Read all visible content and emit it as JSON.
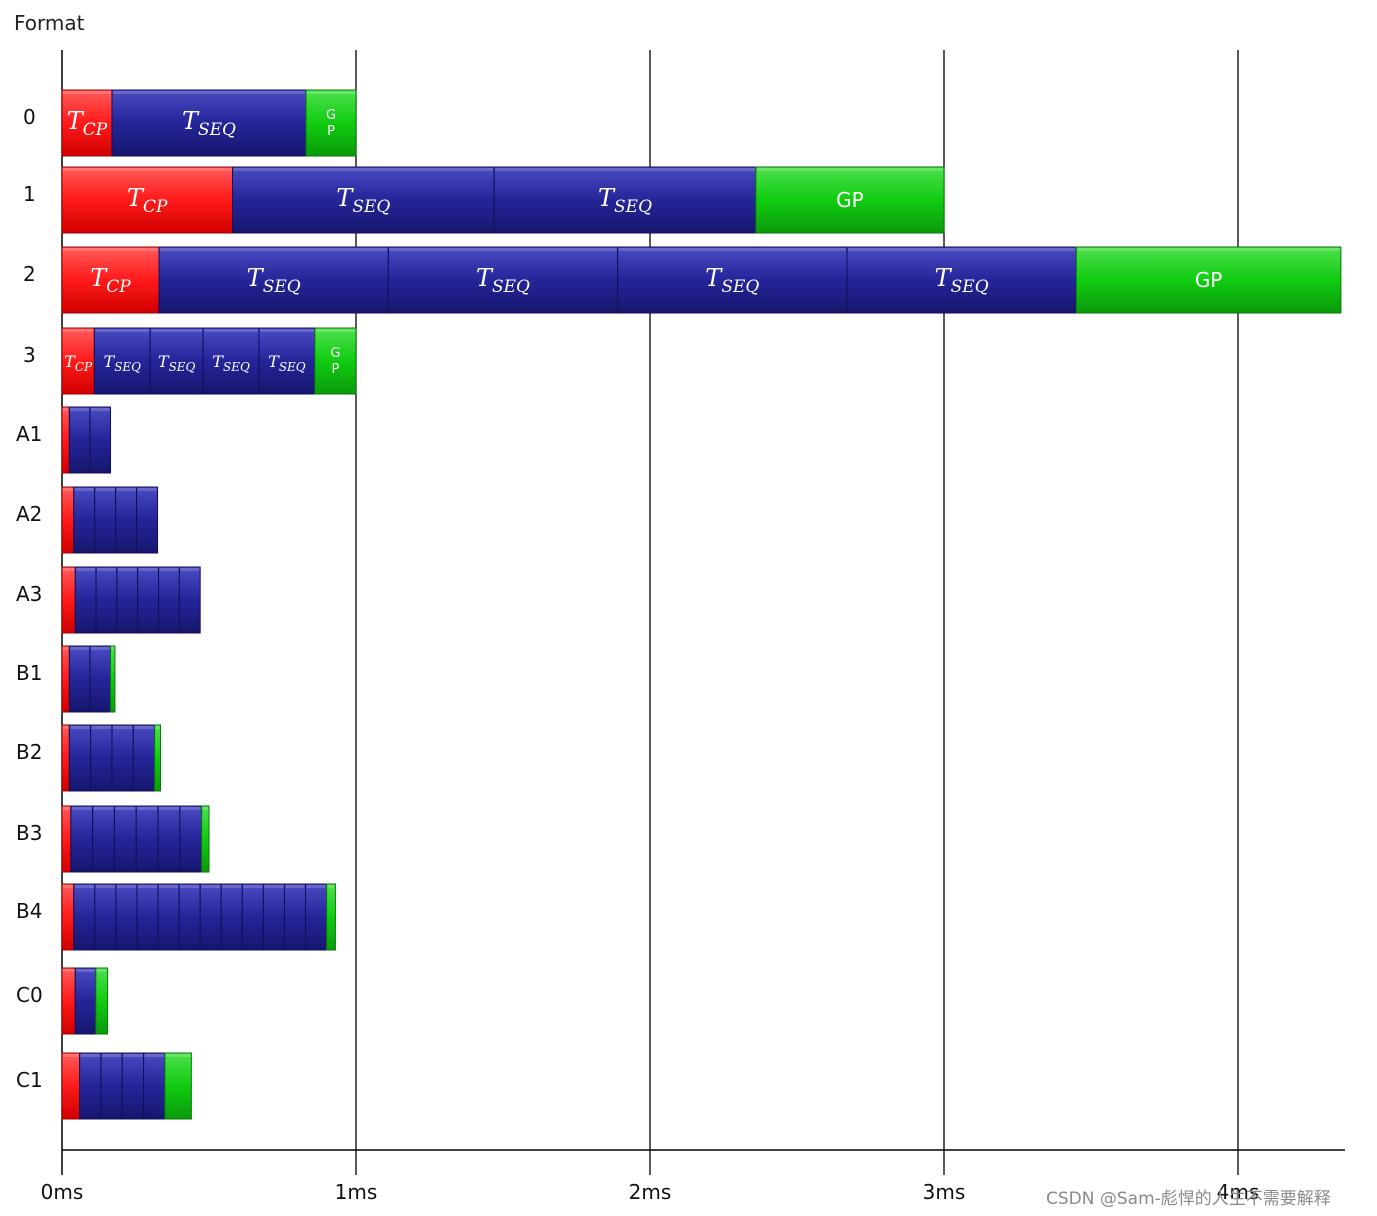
{
  "header": {
    "title": "Format"
  },
  "watermark": "CSDN @Sam-彪悍的人生不需要解释",
  "chart_data": {
    "type": "bar",
    "orientation": "horizontal-stacked-timeline",
    "title": "",
    "xlabel": "",
    "ylabel": "Format",
    "x_unit": "ms",
    "x_ticks": [
      {
        "value": 0,
        "label": "0ms"
      },
      {
        "value": 1,
        "label": "1ms"
      },
      {
        "value": 2,
        "label": "2ms"
      },
      {
        "value": 3,
        "label": "3ms"
      },
      {
        "value": 4,
        "label": "4ms"
      }
    ],
    "xlim": [
      0,
      4.35
    ],
    "grid": "vertical-at-ticks",
    "segment_types": {
      "cp": {
        "label": "T",
        "sub": "CP",
        "color": "#ff1a1a"
      },
      "seq": {
        "label": "T",
        "sub": "SEQ",
        "color": "#25259a"
      },
      "gp": {
        "label": "GP",
        "color": "#11cc11"
      }
    },
    "rows": [
      {
        "name": "0",
        "segments": [
          {
            "type": "cp",
            "start": 0.0,
            "end": 0.17,
            "text": "T",
            "sub": "CP"
          },
          {
            "type": "seq",
            "start": 0.17,
            "end": 0.83,
            "text": "T",
            "sub": "SEQ"
          },
          {
            "type": "gp",
            "start": 0.83,
            "end": 1.0,
            "text": "G\nP"
          }
        ]
      },
      {
        "name": "1",
        "segments": [
          {
            "type": "cp",
            "start": 0.0,
            "end": 0.58,
            "text": "T",
            "sub": "CP"
          },
          {
            "type": "seq",
            "start": 0.58,
            "end": 1.47,
            "text": "T",
            "sub": "SEQ"
          },
          {
            "type": "seq",
            "start": 1.47,
            "end": 2.36,
            "text": "T",
            "sub": "SEQ"
          },
          {
            "type": "gp",
            "start": 2.36,
            "end": 3.0,
            "text": "GP"
          }
        ]
      },
      {
        "name": "2",
        "segments": [
          {
            "type": "cp",
            "start": 0.0,
            "end": 0.33,
            "text": "T",
            "sub": "CP"
          },
          {
            "type": "seq",
            "start": 0.33,
            "end": 1.11,
            "text": "T",
            "sub": "SEQ"
          },
          {
            "type": "seq",
            "start": 1.11,
            "end": 1.89,
            "text": "T",
            "sub": "SEQ"
          },
          {
            "type": "seq",
            "start": 1.89,
            "end": 2.67,
            "text": "T",
            "sub": "SEQ"
          },
          {
            "type": "seq",
            "start": 2.67,
            "end": 3.45,
            "text": "T",
            "sub": "SEQ"
          },
          {
            "type": "gp",
            "start": 3.45,
            "end": 4.35,
            "text": "GP"
          }
        ]
      },
      {
        "name": "3",
        "segments": [
          {
            "type": "cp",
            "start": 0.0,
            "end": 0.11,
            "text": "T",
            "sub": "CP"
          },
          {
            "type": "seq",
            "start": 0.11,
            "end": 0.3,
            "text": "T",
            "sub": "SEQ"
          },
          {
            "type": "seq",
            "start": 0.3,
            "end": 0.48,
            "text": "T",
            "sub": "SEQ"
          },
          {
            "type": "seq",
            "start": 0.48,
            "end": 0.67,
            "text": "T",
            "sub": "SEQ"
          },
          {
            "type": "seq",
            "start": 0.67,
            "end": 0.86,
            "text": "T",
            "sub": "SEQ"
          },
          {
            "type": "gp",
            "start": 0.86,
            "end": 1.0,
            "text": "G\nP"
          }
        ]
      },
      {
        "name": "A1",
        "cp": [
          0.0,
          0.025
        ],
        "seq_count": 2,
        "seq_end": 0.165
      },
      {
        "name": "A2",
        "cp": [
          0.0,
          0.04
        ],
        "seq_count": 4,
        "seq_end": 0.325
      },
      {
        "name": "A3",
        "cp": [
          0.0,
          0.045
        ],
        "seq_count": 6,
        "seq_end": 0.47
      },
      {
        "name": "B1",
        "cp": [
          0.0,
          0.025
        ],
        "seq_count": 2,
        "seq_end": 0.165,
        "gp_end": 0.18
      },
      {
        "name": "B2",
        "cp": [
          0.0,
          0.025
        ],
        "seq_count": 4,
        "seq_end": 0.315,
        "gp_end": 0.335
      },
      {
        "name": "B3",
        "cp": [
          0.0,
          0.03
        ],
        "seq_count": 6,
        "seq_end": 0.475,
        "gp_end": 0.5
      },
      {
        "name": "B4",
        "cp": [
          0.0,
          0.04
        ],
        "seq_count": 12,
        "seq_end": 0.9,
        "gp_end": 0.93
      },
      {
        "name": "C0",
        "cp": [
          0.0,
          0.045
        ],
        "seq_count": 1,
        "seq_end": 0.115,
        "gp_end": 0.155
      },
      {
        "name": "C1",
        "cp": [
          0.0,
          0.06
        ],
        "seq_count": 4,
        "seq_end": 0.35,
        "gp_end": 0.44
      }
    ]
  }
}
